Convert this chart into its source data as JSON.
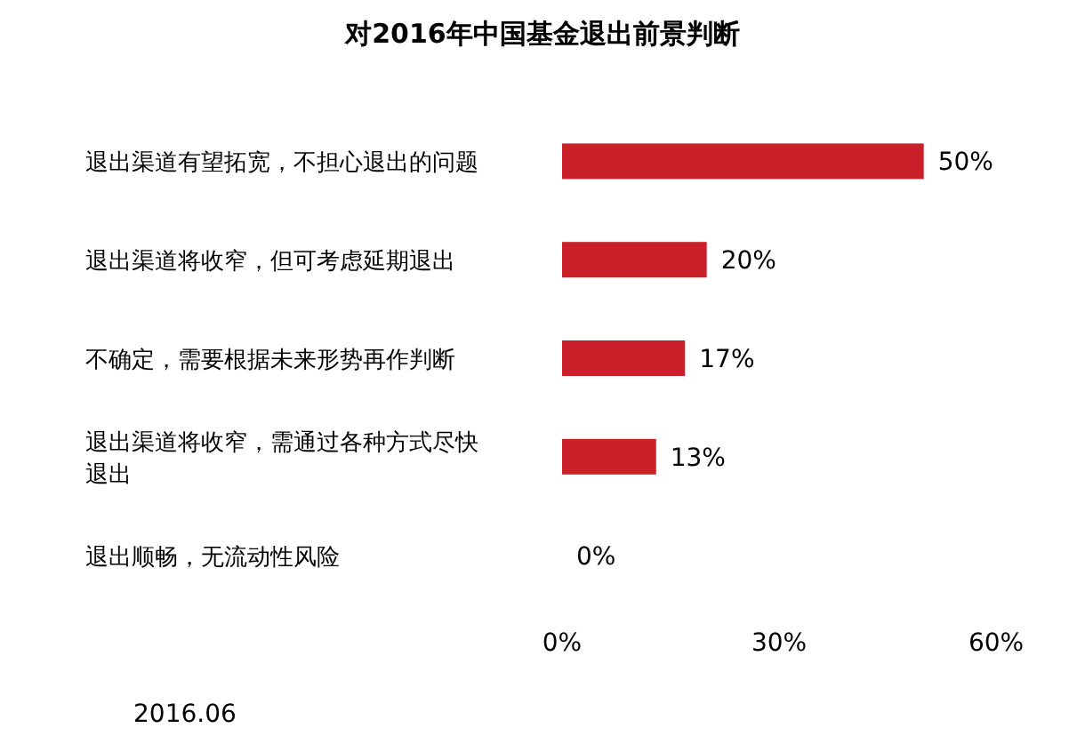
{
  "chart_data": {
    "type": "bar",
    "orientation": "horizontal",
    "title": "对2016年中国基金退出前景判断",
    "categories": [
      "退出渠道有望拓宽，不担心退出的问题",
      "退出渠道将收窄，但可考虑延期退出",
      "不确定，需要根据未来形势再作判断",
      "退出渠道将收窄，需通过各种方式尽快退出",
      "退出顺畅，无流动性风险"
    ],
    "values": [
      50,
      20,
      17,
      13,
      0
    ],
    "value_labels": [
      "50%",
      "20%",
      "17%",
      "13%",
      "0%"
    ],
    "color": "#c9202a",
    "xlim": [
      0,
      60
    ],
    "xticks": [
      {
        "value": 0,
        "label": "0%"
      },
      {
        "value": 30,
        "label": "30%"
      },
      {
        "value": 60,
        "label": "60%"
      }
    ],
    "grid": false,
    "annotations": [
      "2016.06"
    ]
  }
}
